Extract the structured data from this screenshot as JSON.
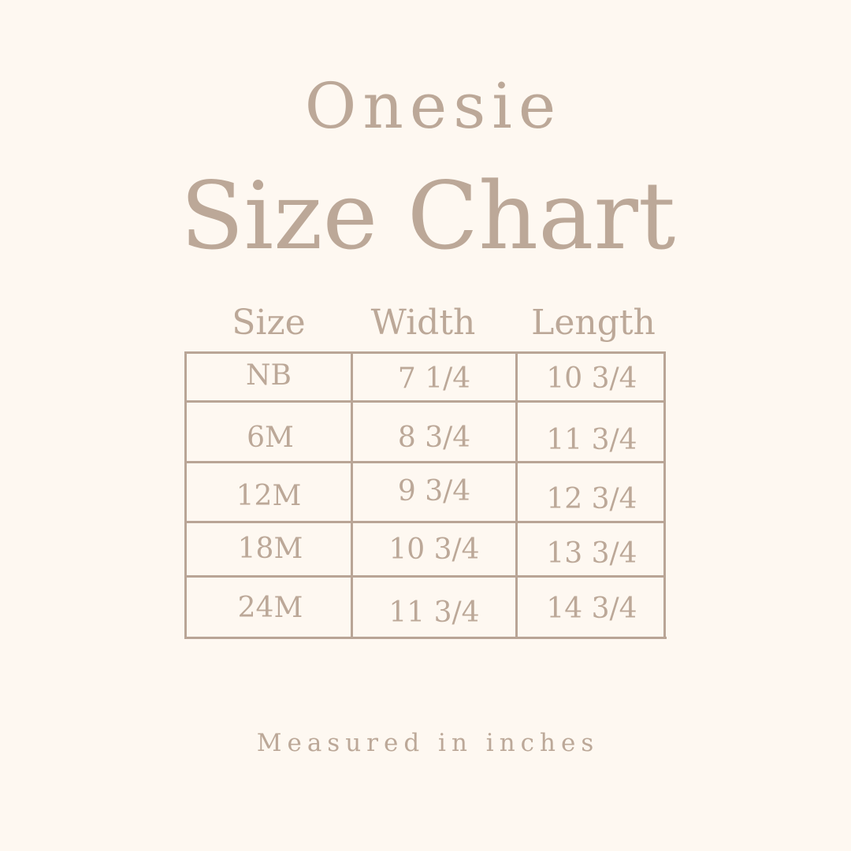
{
  "title_line1": "Onesie",
  "title_line2": "Size Chart",
  "table": {
    "headers": [
      "Size",
      "Width",
      "Length"
    ],
    "rows": [
      [
        "NB",
        "7 1/4",
        "10 3/4"
      ],
      [
        "6M",
        "8 3/4",
        "11 3/4"
      ],
      [
        "12M",
        "9 3/4",
        "12 3/4"
      ],
      [
        "18M",
        "10 3/4",
        "13 3/4"
      ],
      [
        "24M",
        "11 3/4",
        "14 3/4"
      ]
    ]
  },
  "footer": "Measured in inches",
  "colors": {
    "background": "#fef8f1",
    "text": "#bca898",
    "lines": "#b9a596"
  }
}
